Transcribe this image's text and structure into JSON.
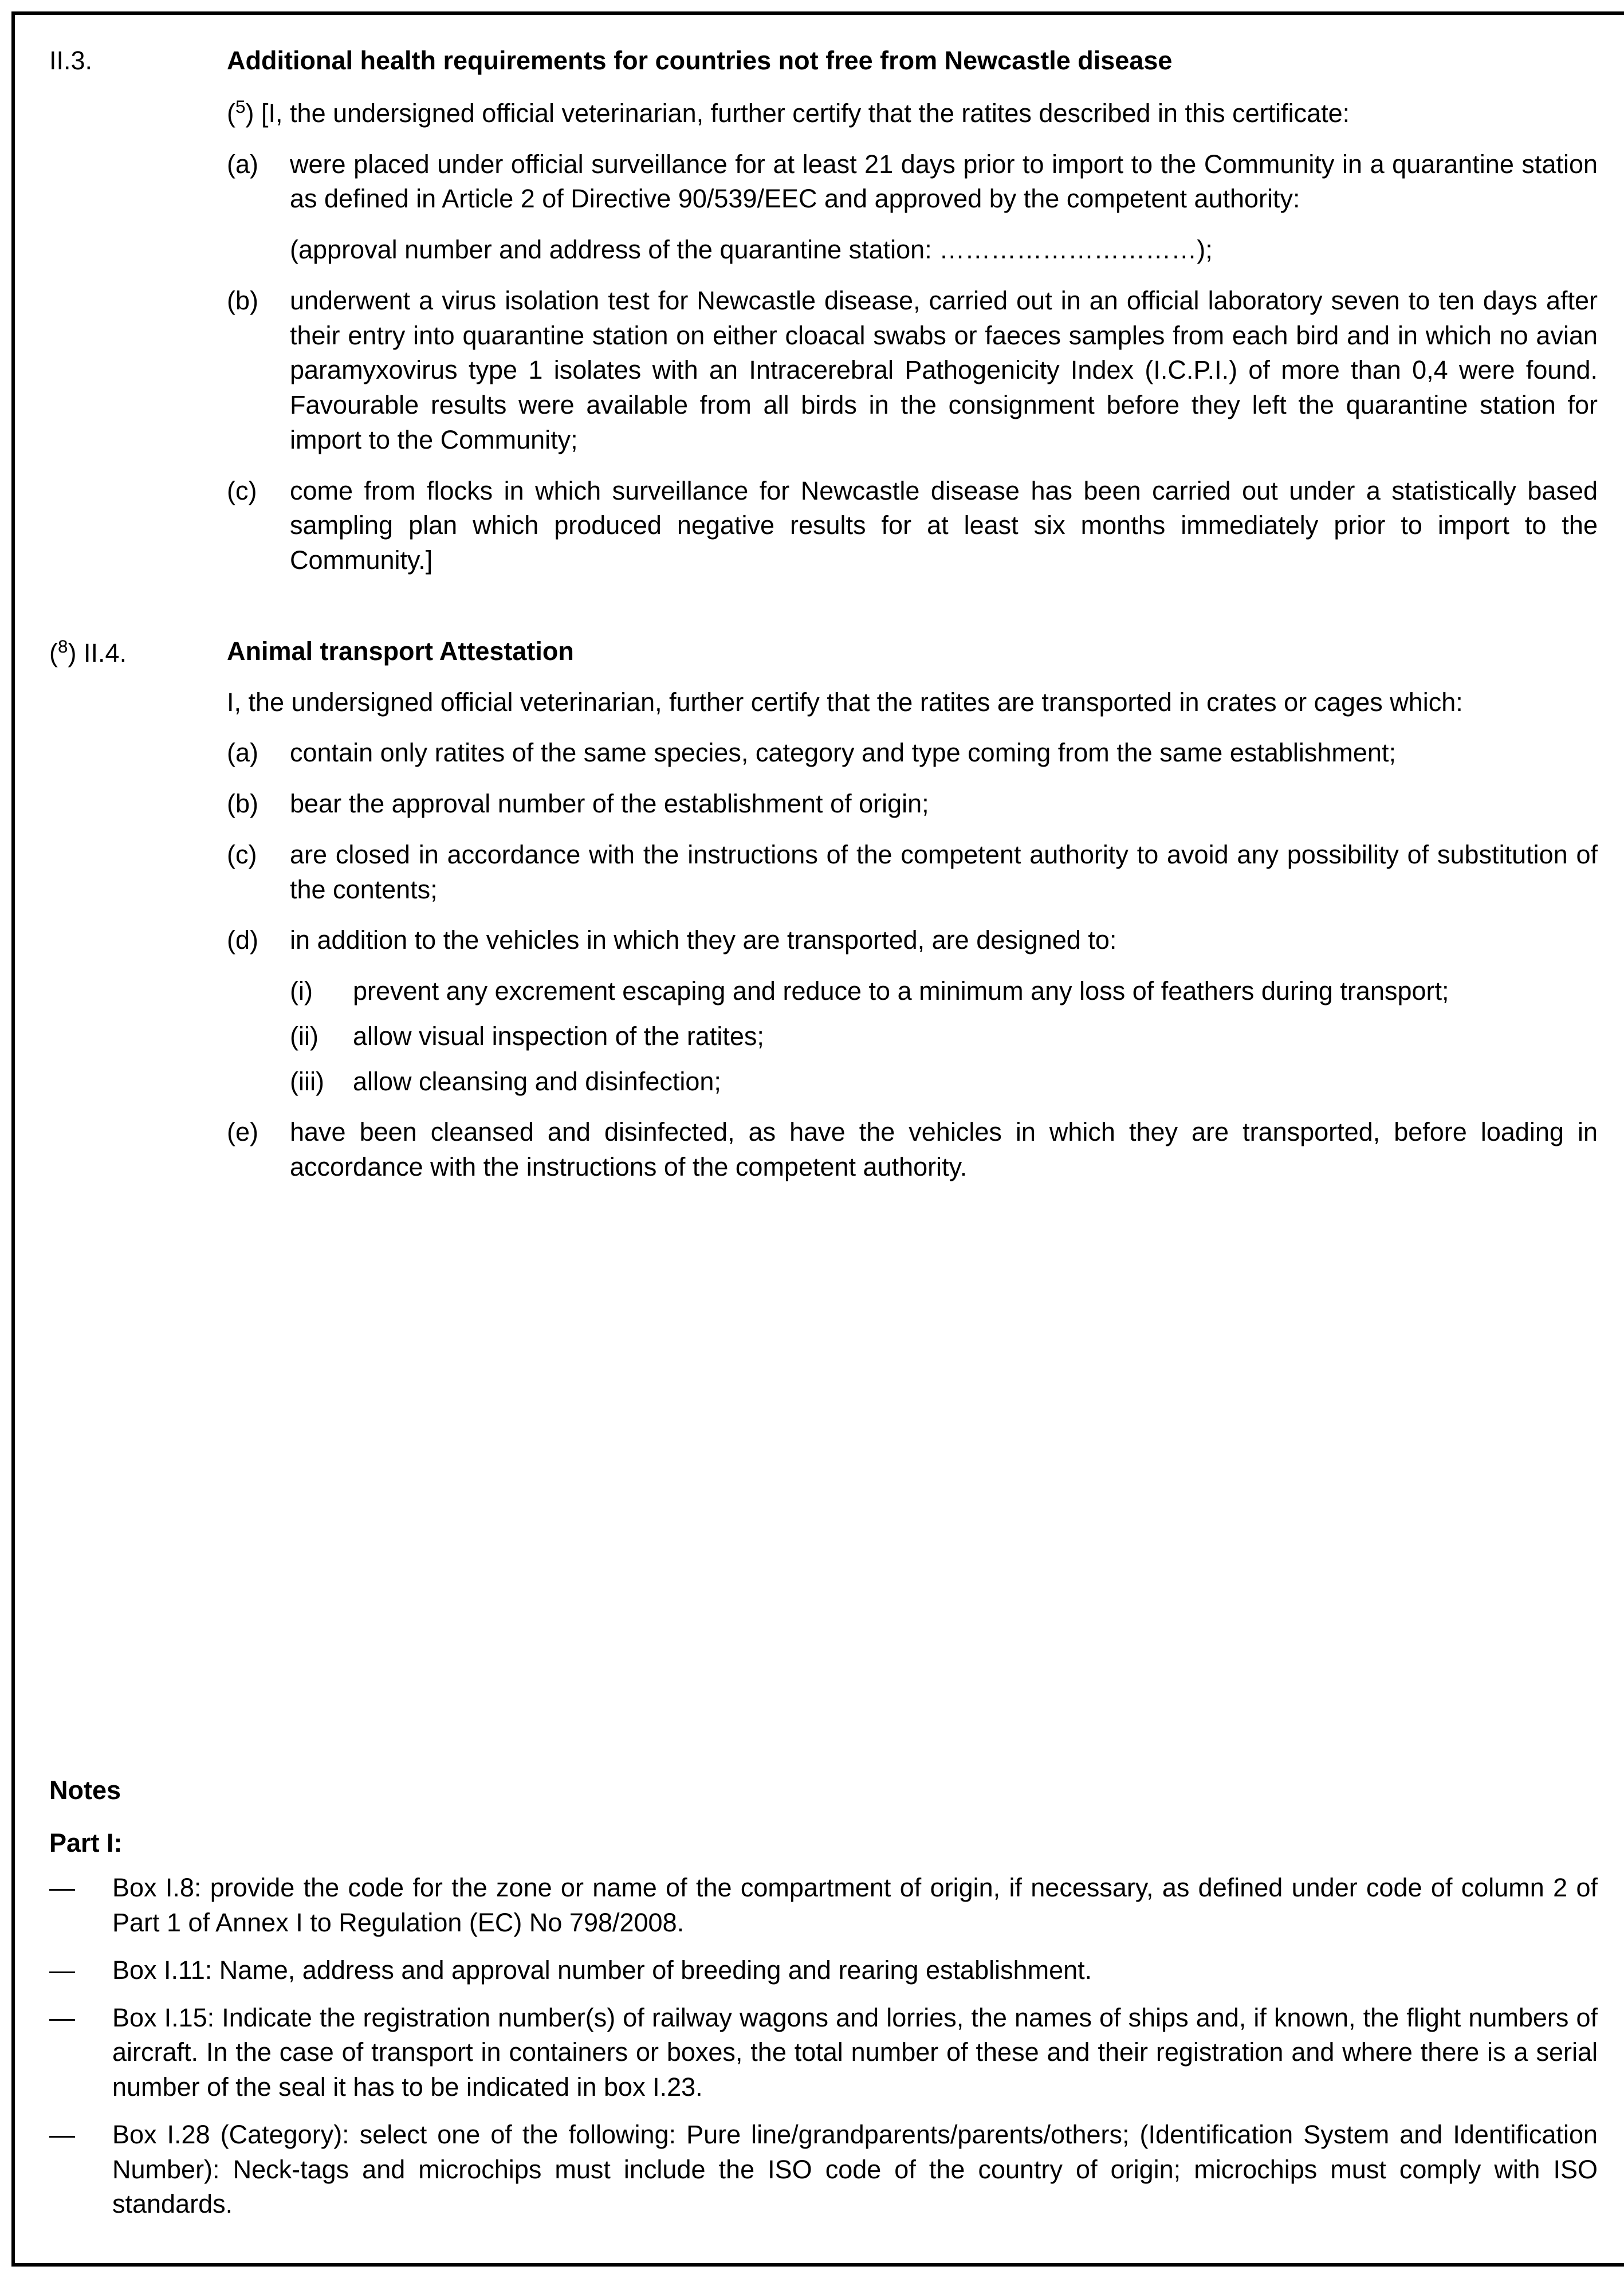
{
  "section_II3": {
    "number": "II.3.",
    "title": "Additional health requirements for countries not free from Newcastle disease",
    "intro_prefix_sup": "5",
    "intro": "[I, the undersigned official veterinarian, further certify that the ratites described in this certificate:",
    "items": [
      {
        "letter": "(a)",
        "text": "were placed under official surveillance for at least 21 days prior to import to the Community in a quarantine station as defined in Article 2 of Directive 90/539/EEC and approved by the competent authority:",
        "extra": "(approval number and address of the quarantine station: …………………………);"
      },
      {
        "letter": "(b)",
        "text": "underwent a virus isolation test for Newcastle disease, carried out in an official laboratory seven to ten days after their entry into quarantine station on either cloacal swabs or faeces samples from each bird and in which no avian paramyxovirus type 1 isolates with an Intracerebral Pathogenicity Index (I.C.P.I.) of more than 0,4 were found. Favourable results were available from all birds in the consignment before they left the quarantine station for import to the Community;"
      },
      {
        "letter": "(c)",
        "text": "come from flocks in which surveillance for Newcastle disease has been carried out under a statistically based sampling plan which produced negative results for at least six months immediately prior to import to the Community.]"
      }
    ]
  },
  "section_II4": {
    "number_prefix_sup": "8",
    "number": "II.4.",
    "title": "Animal transport Attestation",
    "intro": "I, the undersigned official veterinarian, further certify that the ratites are transported in crates or cages which:",
    "items": [
      {
        "letter": "(a)",
        "text": "contain only ratites of the same species, category and type coming from the same establishment;"
      },
      {
        "letter": "(b)",
        "text": "bear the approval number of the establishment of origin;"
      },
      {
        "letter": "(c)",
        "text": "are closed in accordance with the instructions of the competent authority to avoid any possibility of substitution of the contents;"
      },
      {
        "letter": "(d)",
        "text": "in addition to the vehicles in which they are transported, are designed to:",
        "subitems": [
          {
            "num": "(i)",
            "text": "prevent any excrement escaping and reduce to a minimum any loss of feathers during transport;"
          },
          {
            "num": "(ii)",
            "text": "allow visual inspection of the ratites;"
          },
          {
            "num": "(iii)",
            "text": "allow cleansing and disinfection;"
          }
        ]
      },
      {
        "letter": "(e)",
        "text": "have been cleansed and disinfected, as have the vehicles in which they are transported, before loading in accordance with the instructions of the competent authority."
      }
    ]
  },
  "notes": {
    "heading": "Notes",
    "part_heading": "Part I:",
    "items": [
      "Box I.8: provide the code for the zone or name of the compartment of origin, if necessary, as defined under code of column 2 of Part 1 of Annex I to Regulation (EC) No 798/2008.",
      "Box I.11: Name, address and approval number of breeding and rearing establishment.",
      "Box I.15: Indicate the registration number(s) of railway wagons and lorries, the names of ships and, if known, the flight numbers of aircraft. In the case of transport in containers or boxes, the total number of these and their registration and where there is a serial number of the seal it has to be indicated in box I.23.",
      "Box I.28 (Category): select one of the following: Pure line/grandparents/parents/others; (Identification System and Identification Number): Neck-tags and microchips must include the ISO code of the country of origin; microchips must comply with ISO standards."
    ]
  }
}
